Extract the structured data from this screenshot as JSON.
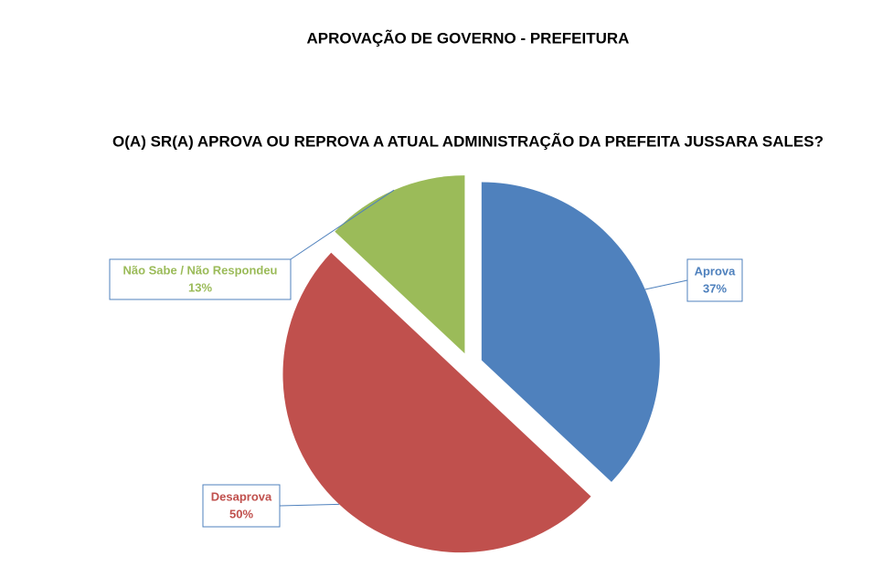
{
  "chart_data": {
    "type": "pie",
    "title": "APROVAÇÃO DE GOVERNO - PREFEITURA",
    "subtitle": "O(A) SR(A) APROVA OU REPROVA A ATUAL ADMINISTRAÇÃO DA PREFEITA JUSSARA SALES?",
    "categories": [
      "Aprova",
      "Desaprova",
      "Não Sabe / Não Respondeu"
    ],
    "values": [
      37,
      50,
      13
    ],
    "value_labels": [
      "37%",
      "50%",
      "13%"
    ],
    "colors": [
      "#4f81bd",
      "#c0504d",
      "#9bbb59"
    ]
  }
}
